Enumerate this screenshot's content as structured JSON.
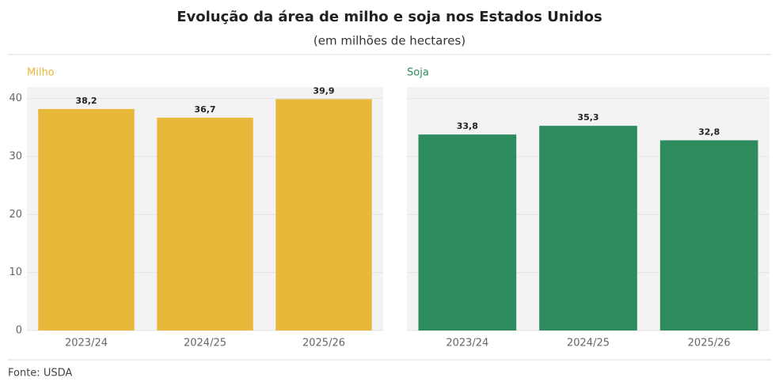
{
  "title": "Evolução da área de milho e soja nos Estados Unidos",
  "subtitle": "(em milhões de hectares)",
  "source": "Fonte: USDA",
  "chart_data": [
    {
      "type": "bar",
      "title": "Milho",
      "categories": [
        "2023/24",
        "2024/25",
        "2025/26"
      ],
      "values": [
        38.2,
        36.7,
        39.9
      ],
      "value_labels": [
        "38,2",
        "36,7",
        "39,9"
      ],
      "color": "#e8b83a",
      "ylim": [
        0,
        42
      ],
      "yticks": [
        0,
        10,
        20,
        30,
        40
      ],
      "grid": true
    },
    {
      "type": "bar",
      "title": "Soja",
      "categories": [
        "2023/24",
        "2024/25",
        "2025/26"
      ],
      "values": [
        33.8,
        35.3,
        32.8
      ],
      "value_labels": [
        "33,8",
        "35,3",
        "32,8"
      ],
      "color": "#2e8b5e",
      "ylim": [
        0,
        42
      ],
      "grid": true
    }
  ]
}
